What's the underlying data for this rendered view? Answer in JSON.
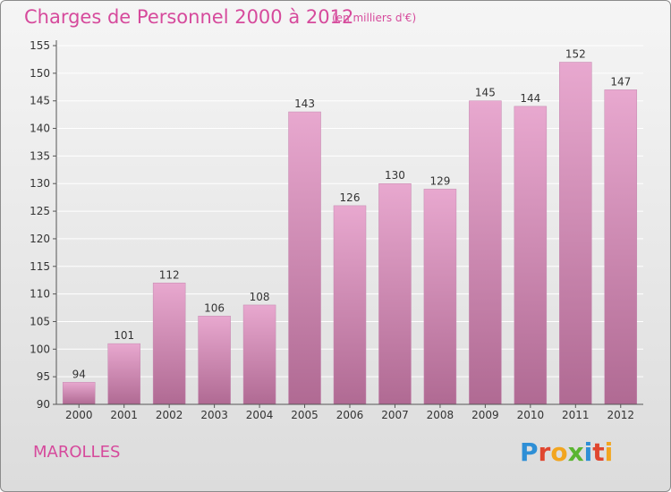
{
  "header": {
    "title": "Charges de Personnel 2000 à 2012",
    "unit": "(en milliers d'€)"
  },
  "footer": {
    "commune": "MAROLLES",
    "logo_text": "Proxiti",
    "logo_letters": [
      {
        "ch": "P",
        "color": "#2e8fd6"
      },
      {
        "ch": "r",
        "color": "#e0462f"
      },
      {
        "ch": "o",
        "color": "#f2a51f"
      },
      {
        "ch": "x",
        "color": "#5ab531"
      },
      {
        "ch": "i",
        "color": "#2e8fd6"
      },
      {
        "ch": "t",
        "color": "#e0462f"
      },
      {
        "ch": "i",
        "color": "#f2a51f"
      }
    ]
  },
  "colors": {
    "accent": "#d64a9c",
    "bar_top": "#e8a8cf",
    "bar_bottom": "#b06a93",
    "axis": "#555555",
    "grid": "#ffffff"
  },
  "chart_data": {
    "type": "bar",
    "categories": [
      "2000",
      "2001",
      "2002",
      "2003",
      "2004",
      "2005",
      "2006",
      "2007",
      "2008",
      "2009",
      "2010",
      "2011",
      "2012"
    ],
    "values": [
      94,
      101,
      112,
      106,
      108,
      143,
      126,
      130,
      129,
      145,
      144,
      152,
      147
    ],
    "ylim": [
      90,
      155
    ],
    "yticks": [
      90,
      95,
      100,
      105,
      110,
      115,
      120,
      125,
      130,
      135,
      140,
      145,
      150,
      155
    ],
    "grid": true
  }
}
